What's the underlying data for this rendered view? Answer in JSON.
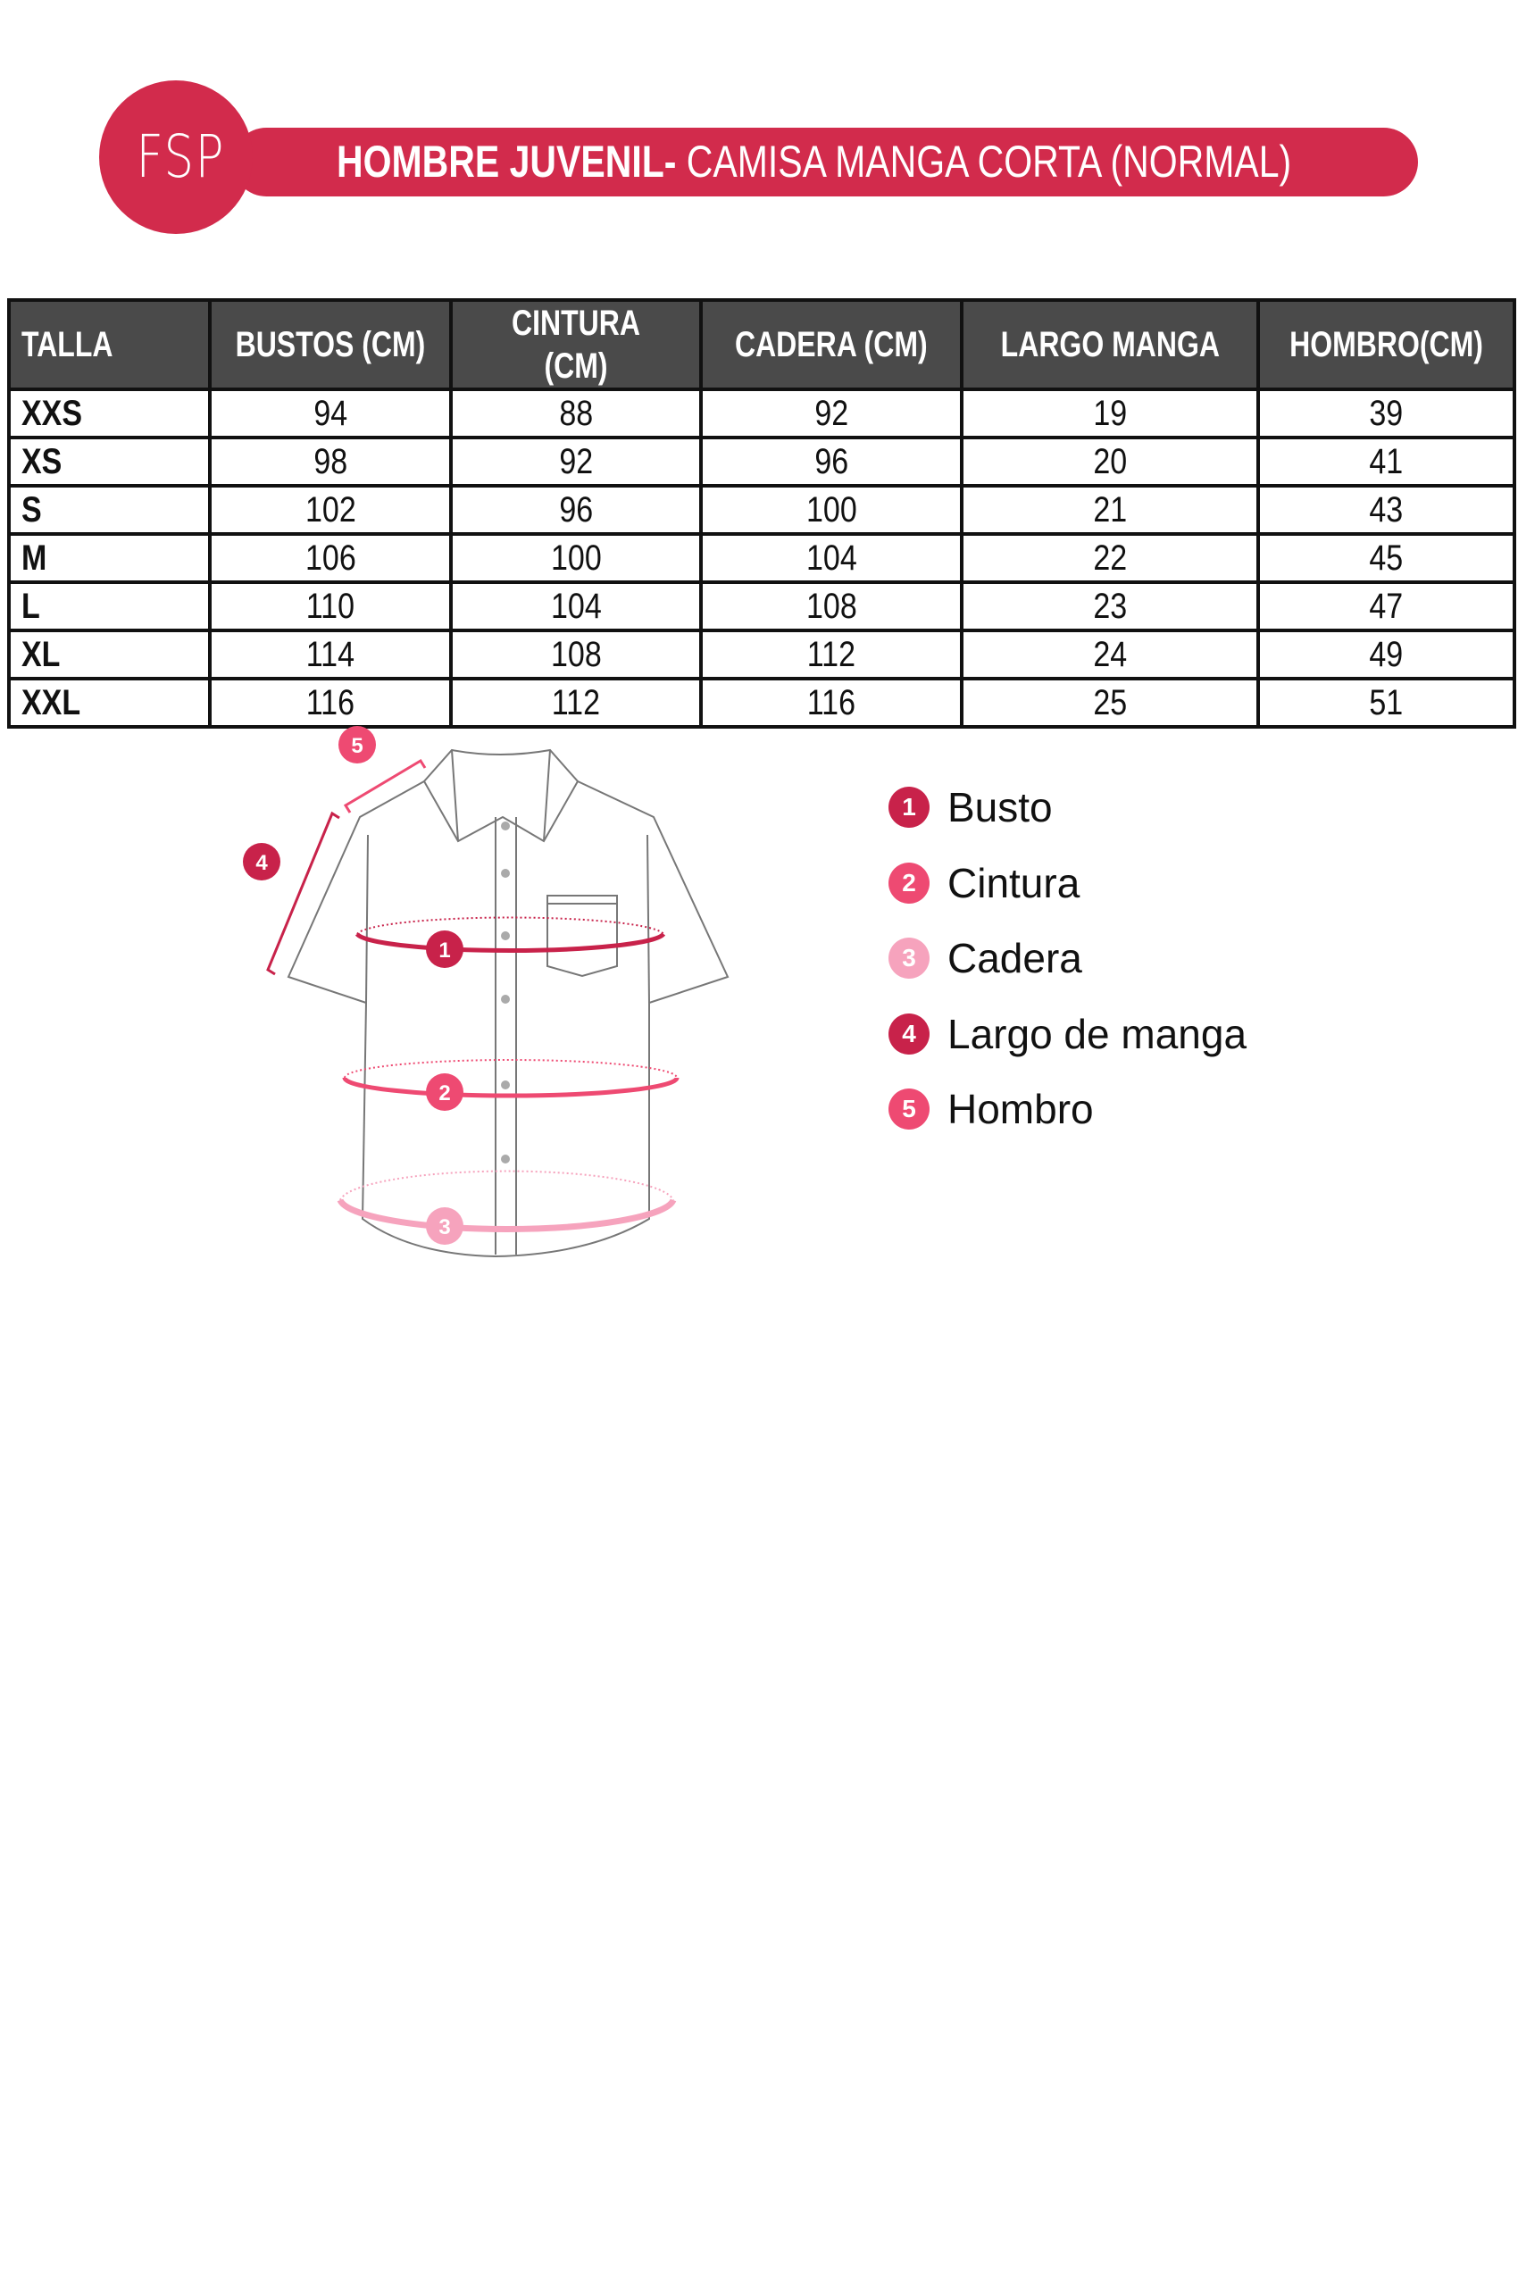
{
  "header": {
    "logo_text": "FSP",
    "title_bold": "HOMBRE JUVENIL-",
    "title_regular": " CAMISA MANGA CORTA (NORMAL)",
    "brand_color": "#d22b4c"
  },
  "table": {
    "columns": [
      "TALLA",
      "BUSTOS (CM)",
      "CINTURA (CM)",
      "CADERA (CM)",
      "LARGO MANGA",
      "HOMBRO(CM)"
    ],
    "rows": [
      [
        "XXS",
        "94",
        "88",
        "92",
        "19",
        "39"
      ],
      [
        "XS",
        "98",
        "92",
        "96",
        "20",
        "41"
      ],
      [
        "S",
        "102",
        "96",
        "100",
        "21",
        "43"
      ],
      [
        "M",
        "106",
        "100",
        "104",
        "22",
        "45"
      ],
      [
        "L",
        "110",
        "104",
        "108",
        "23",
        "47"
      ],
      [
        "XL",
        "114",
        "108",
        "112",
        "24",
        "49"
      ],
      [
        "XXL",
        "116",
        "112",
        "116",
        "25",
        "51"
      ]
    ]
  },
  "legend": [
    {
      "num": "1",
      "label": "Busto",
      "color": "#c8224a"
    },
    {
      "num": "2",
      "label": "Cintura",
      "color": "#ee4a72"
    },
    {
      "num": "3",
      "label": "Cadera",
      "color": "#f6a3bd"
    },
    {
      "num": "4",
      "label": "Largo de manga",
      "color": "#c8224a"
    },
    {
      "num": "5",
      "label": "Hombro",
      "color": "#ee4a72"
    }
  ]
}
